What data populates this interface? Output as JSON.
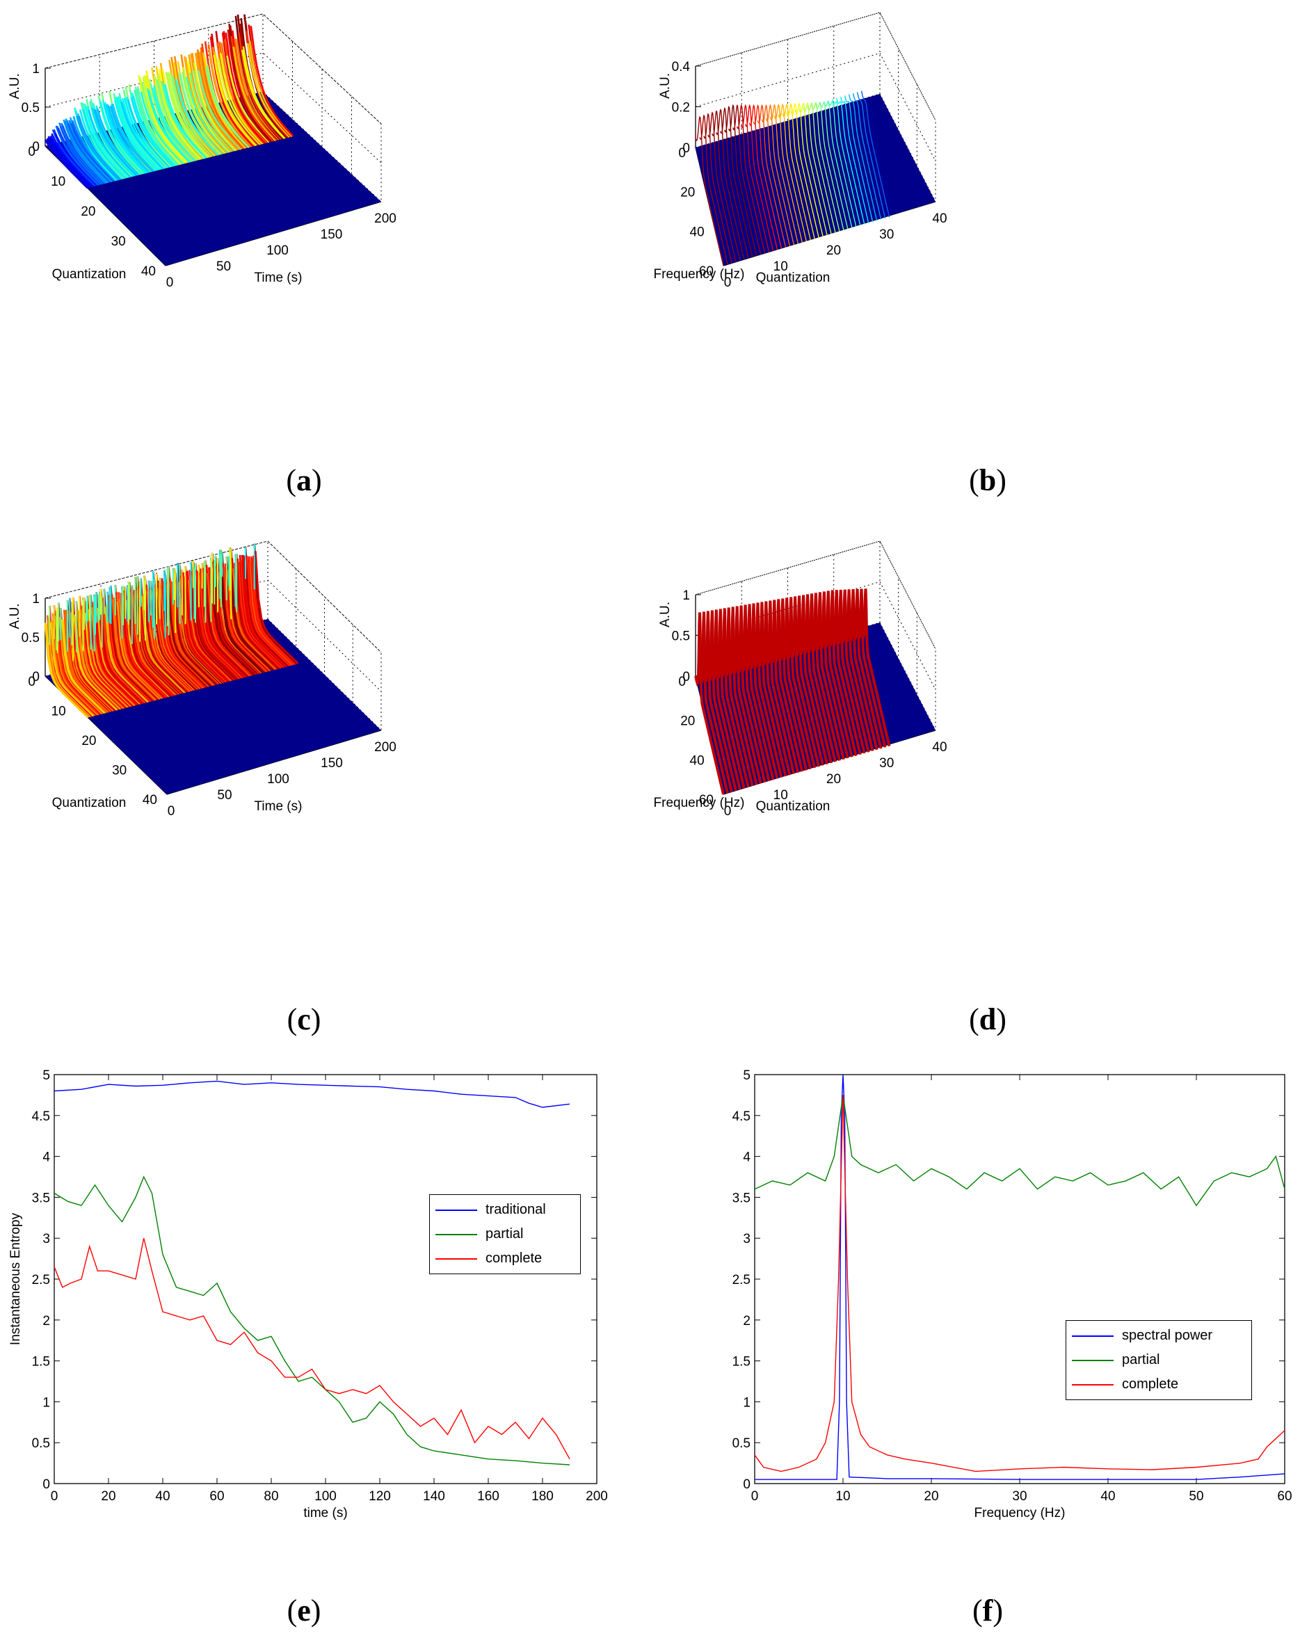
{
  "panels": {
    "a": {
      "caption_letter": "a",
      "zlabel": "A.U.",
      "xlabel": "Quantization",
      "ylabel": "Time (s)",
      "z_ticks": [
        "0",
        "0.5",
        "1"
      ],
      "q_ticks": [
        "0",
        "10",
        "20",
        "30",
        "40"
      ],
      "t_ticks": [
        "0",
        "50",
        "100",
        "150",
        "200"
      ]
    },
    "b": {
      "caption_letter": "b",
      "zlabel": "A.U.",
      "xlabel": "Frequency (Hz)",
      "ylabel": "Quantization",
      "z_ticks": [
        "0",
        "0.2",
        "0.4"
      ],
      "f_ticks": [
        "0",
        "20",
        "40",
        "60"
      ],
      "q_ticks": [
        "0",
        "10",
        "20",
        "30",
        "40"
      ]
    },
    "c": {
      "caption_letter": "c",
      "zlabel": "A.U.",
      "xlabel": "Quantization",
      "ylabel": "Time (s)",
      "z_ticks": [
        "0",
        "0.5",
        "1"
      ],
      "q_ticks": [
        "0",
        "10",
        "20",
        "30",
        "40"
      ],
      "t_ticks": [
        "0",
        "50",
        "100",
        "150",
        "200"
      ]
    },
    "d": {
      "caption_letter": "d",
      "zlabel": "A.U.",
      "xlabel": "Frequency (Hz)",
      "ylabel": "Quantization",
      "z_ticks": [
        "0",
        "0.5",
        "1"
      ],
      "f_ticks": [
        "0",
        "20",
        "40",
        "60"
      ],
      "q_ticks": [
        "0",
        "10",
        "20",
        "30",
        "40"
      ]
    },
    "e": {
      "caption_letter": "e",
      "legend": [
        "traditional",
        "partial",
        "complete"
      ]
    },
    "f": {
      "caption_letter": "f",
      "legend": [
        "spectral power",
        "partial",
        "complete"
      ]
    }
  },
  "colors": {
    "blue": "#0000ff",
    "green": "#008000",
    "red": "#ff0000",
    "surface_base": "#00008b"
  },
  "chart_data": [
    {
      "id": "a",
      "type": "surface",
      "zlabel": "A.U.",
      "xlabel": "Quantization",
      "ylabel": "Time (s)",
      "xlim": [
        0,
        40
      ],
      "ylim": [
        0,
        200
      ],
      "zlim": [
        0,
        1
      ],
      "ridge_t": [
        0,
        20,
        40,
        60,
        80,
        100,
        120,
        140,
        150,
        160,
        170,
        180,
        190
      ],
      "ridge_peak": [
        0.1,
        0.35,
        0.5,
        0.55,
        0.6,
        0.7,
        0.75,
        0.8,
        0.9,
        1.0,
        1.05,
        1.1,
        1.1
      ]
    },
    {
      "id": "b",
      "type": "surface",
      "zlabel": "A.U.",
      "xlabel": "Frequency (Hz)",
      "ylabel": "Quantization",
      "xlim": [
        0,
        60
      ],
      "ylim": [
        0,
        40
      ],
      "zlim": [
        0,
        0.4
      ],
      "peak_frequency": 10,
      "peak_height": [
        0.22,
        0.23,
        0.18,
        0.14,
        0.1,
        0.05
      ]
    },
    {
      "id": "c",
      "type": "surface",
      "zlabel": "A.U.",
      "xlabel": "Quantization",
      "ylabel": "Time (s)",
      "xlim": [
        0,
        40
      ],
      "ylim": [
        0,
        200
      ],
      "zlim": [
        0,
        1
      ],
      "ridge_t": [
        0,
        50,
        100,
        150,
        190
      ],
      "ridge_peak": [
        0.9,
        0.95,
        1.0,
        1.05,
        1.05
      ]
    },
    {
      "id": "d",
      "type": "surface",
      "zlabel": "A.U.",
      "xlabel": "Frequency (Hz)",
      "ylabel": "Quantization",
      "xlim": [
        0,
        60
      ],
      "ylim": [
        0,
        40
      ],
      "zlim": [
        0,
        1
      ],
      "peak_frequency": 10,
      "peak_height": [
        1.0,
        0.95,
        0.9,
        0.85,
        0.8,
        0.7
      ]
    },
    {
      "id": "e",
      "type": "line",
      "xlabel": "time (s)",
      "ylabel": "Instantaneous Entropy",
      "xlim": [
        0,
        200
      ],
      "ylim": [
        0,
        5
      ],
      "xticks": [
        0,
        20,
        40,
        60,
        80,
        100,
        120,
        140,
        160,
        180,
        200
      ],
      "yticks": [
        0,
        0.5,
        1,
        1.5,
        2,
        2.5,
        3,
        3.5,
        4,
        4.5,
        5
      ],
      "legend_position": "right",
      "series": [
        {
          "name": "traditional",
          "color": "#0000ff",
          "x": [
            0,
            10,
            20,
            30,
            40,
            50,
            60,
            70,
            80,
            90,
            100,
            110,
            120,
            130,
            140,
            150,
            160,
            170,
            175,
            180,
            190
          ],
          "y": [
            4.8,
            4.82,
            4.88,
            4.86,
            4.87,
            4.9,
            4.92,
            4.88,
            4.9,
            4.88,
            4.87,
            4.86,
            4.85,
            4.82,
            4.8,
            4.76,
            4.74,
            4.72,
            4.65,
            4.6,
            4.64
          ]
        },
        {
          "name": "partial",
          "color": "#008000",
          "x": [
            0,
            5,
            10,
            15,
            20,
            25,
            30,
            33,
            36,
            40,
            45,
            50,
            55,
            60,
            65,
            70,
            75,
            80,
            85,
            90,
            95,
            100,
            105,
            110,
            115,
            120,
            125,
            130,
            135,
            140,
            150,
            160,
            170,
            180,
            190
          ],
          "y": [
            3.55,
            3.45,
            3.4,
            3.65,
            3.4,
            3.2,
            3.5,
            3.75,
            3.55,
            2.8,
            2.4,
            2.35,
            2.3,
            2.45,
            2.1,
            1.9,
            1.75,
            1.8,
            1.5,
            1.25,
            1.3,
            1.15,
            1.0,
            0.75,
            0.8,
            1.0,
            0.85,
            0.6,
            0.45,
            0.4,
            0.35,
            0.3,
            0.28,
            0.25,
            0.23
          ]
        },
        {
          "name": "complete",
          "color": "#ff0000",
          "x": [
            0,
            3,
            6,
            10,
            13,
            16,
            20,
            25,
            30,
            33,
            36,
            40,
            45,
            50,
            55,
            60,
            65,
            70,
            75,
            80,
            85,
            90,
            95,
            100,
            105,
            110,
            115,
            120,
            125,
            130,
            135,
            140,
            145,
            150,
            155,
            160,
            165,
            170,
            175,
            180,
            185,
            190
          ],
          "y": [
            2.65,
            2.4,
            2.45,
            2.5,
            2.9,
            2.6,
            2.6,
            2.55,
            2.5,
            3.0,
            2.6,
            2.1,
            2.05,
            2.0,
            2.05,
            1.75,
            1.7,
            1.85,
            1.6,
            1.5,
            1.3,
            1.3,
            1.4,
            1.15,
            1.1,
            1.15,
            1.1,
            1.2,
            1.0,
            0.85,
            0.7,
            0.8,
            0.6,
            0.9,
            0.5,
            0.7,
            0.6,
            0.75,
            0.55,
            0.8,
            0.6,
            0.3
          ]
        }
      ]
    },
    {
      "id": "f",
      "type": "line",
      "xlabel": "Frequency (Hz)",
      "ylabel": "",
      "xlim": [
        0,
        60
      ],
      "ylim": [
        0,
        5
      ],
      "xticks": [
        0,
        10,
        20,
        30,
        40,
        50,
        60
      ],
      "yticks": [
        0,
        0.5,
        1,
        1.5,
        2,
        2.5,
        3,
        3.5,
        4,
        4.5,
        5
      ],
      "legend_position": "right",
      "series": [
        {
          "name": "spectral power",
          "color": "#0000ff",
          "x": [
            0,
            5,
            9.3,
            9.6,
            9.8,
            10.0,
            10.2,
            10.4,
            10.7,
            15,
            20,
            30,
            40,
            50,
            55,
            60
          ],
          "y": [
            0.05,
            0.05,
            0.05,
            1.0,
            4.5,
            5.0,
            4.5,
            1.0,
            0.08,
            0.06,
            0.06,
            0.05,
            0.05,
            0.05,
            0.08,
            0.12
          ]
        },
        {
          "name": "partial",
          "color": "#008000",
          "x": [
            0,
            2,
            4,
            6,
            8,
            9,
            10,
            11,
            12,
            14,
            16,
            18,
            20,
            22,
            24,
            26,
            28,
            30,
            32,
            34,
            36,
            38,
            40,
            42,
            44,
            46,
            48,
            50,
            52,
            54,
            56,
            58,
            59,
            60
          ],
          "y": [
            3.6,
            3.7,
            3.65,
            3.8,
            3.7,
            4.0,
            4.75,
            4.0,
            3.9,
            3.8,
            3.9,
            3.7,
            3.85,
            3.75,
            3.6,
            3.8,
            3.7,
            3.85,
            3.6,
            3.75,
            3.7,
            3.8,
            3.65,
            3.7,
            3.8,
            3.6,
            3.75,
            3.4,
            3.7,
            3.8,
            3.75,
            3.85,
            4.0,
            3.6
          ]
        },
        {
          "name": "complete",
          "color": "#ff0000",
          "x": [
            0,
            1,
            3,
            5,
            7,
            8,
            9,
            9.5,
            10,
            10.5,
            11,
            12,
            13,
            15,
            17,
            20,
            25,
            30,
            35,
            40,
            45,
            50,
            55,
            57,
            58,
            59,
            60
          ],
          "y": [
            0.35,
            0.2,
            0.15,
            0.2,
            0.3,
            0.5,
            1.0,
            2.5,
            4.75,
            2.5,
            1.0,
            0.6,
            0.45,
            0.35,
            0.3,
            0.25,
            0.15,
            0.18,
            0.2,
            0.18,
            0.17,
            0.2,
            0.25,
            0.3,
            0.45,
            0.55,
            0.65
          ]
        }
      ]
    }
  ]
}
